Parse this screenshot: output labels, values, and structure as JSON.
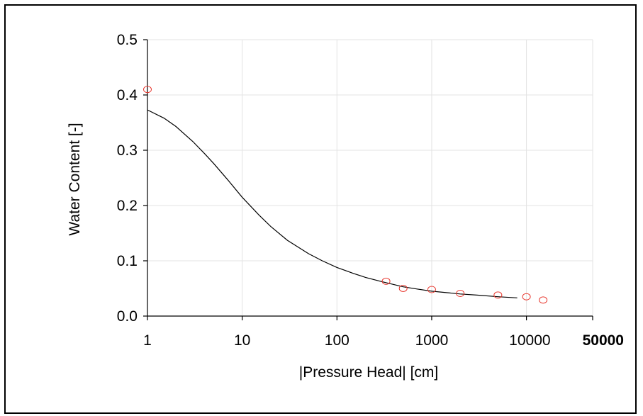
{
  "chart_data": {
    "type": "scatter",
    "title": "",
    "xlabel": "|Pressure Head| [cm]",
    "ylabel": "Water Content [-]",
    "x_scale": "log",
    "xlim": [
      1,
      50000
    ],
    "ylim": [
      0,
      0.5
    ],
    "x_ticks": [
      1,
      10,
      100,
      1000,
      10000,
      50000
    ],
    "x_tick_labels": [
      "1",
      "10",
      "100",
      "1000",
      "10000",
      "50000"
    ],
    "y_ticks": [
      0.0,
      0.1,
      0.2,
      0.3,
      0.4,
      0.5
    ],
    "y_tick_labels": [
      "0.0",
      "0.1",
      "0.2",
      "0.3",
      "0.4",
      "0.5"
    ],
    "grid": true,
    "series": [
      {
        "kind": "points",
        "marker": "open-circle",
        "color": "#e8382f",
        "x": [
          1,
          330,
          500,
          1000,
          2000,
          5000,
          10000,
          15000
        ],
        "y": [
          0.41,
          0.063,
          0.05,
          0.048,
          0.041,
          0.038,
          0.035,
          0.029
        ]
      },
      {
        "kind": "line",
        "color": "#000000",
        "x": [
          1,
          1.5,
          2,
          3,
          4,
          5,
          7,
          10,
          15,
          20,
          30,
          50,
          70,
          100,
          150,
          200,
          300,
          500,
          700,
          1000,
          2000,
          3000,
          5000,
          8000
        ],
        "y": [
          0.373,
          0.358,
          0.343,
          0.316,
          0.294,
          0.276,
          0.247,
          0.215,
          0.183,
          0.162,
          0.137,
          0.113,
          0.1,
          0.088,
          0.077,
          0.07,
          0.062,
          0.053,
          0.049,
          0.045,
          0.04,
          0.038,
          0.035,
          0.033
        ]
      }
    ]
  }
}
